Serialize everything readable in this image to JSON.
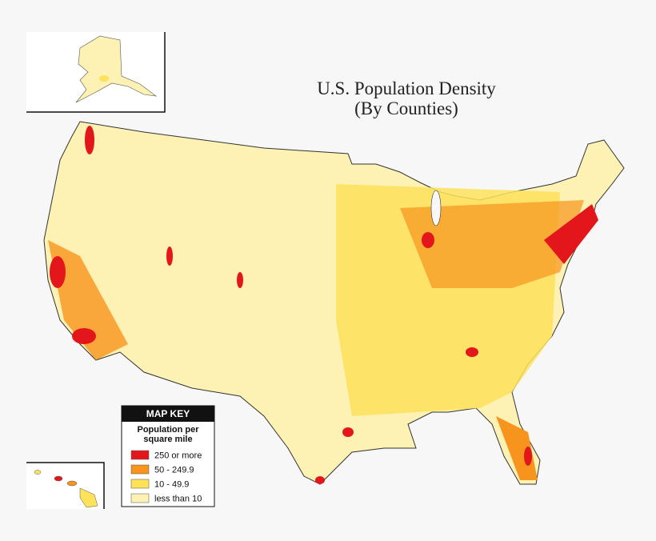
{
  "title": [
    "U.S. Population Density",
    "(By Counties)"
  ],
  "map_key": {
    "title": "MAP KEY",
    "subtitle": [
      "Population per",
      "square mile"
    ],
    "items": [
      {
        "label": "250 or more",
        "color": "#e3161c"
      },
      {
        "label": "50 - 249.9",
        "color": "#f7941d"
      },
      {
        "label": "10 - 49.9",
        "color": "#fde25a"
      },
      {
        "label": "less than 10",
        "color": "#fdf1b3"
      }
    ]
  }
}
